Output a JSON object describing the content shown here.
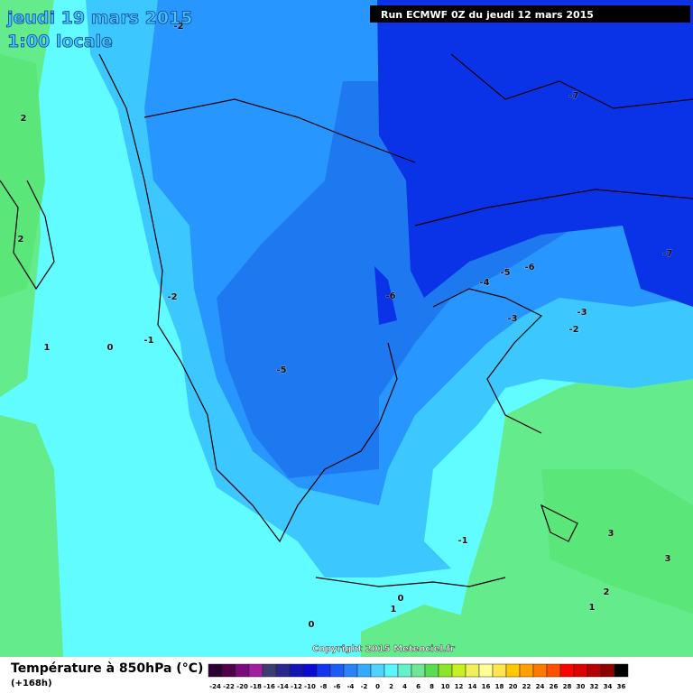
{
  "header": {
    "date": "jeudi 19 mars 2015",
    "time": "1:00 locale",
    "run": "Run ECMWF 0Z du jeudi 12 mars 2015"
  },
  "contour_labels": [
    -2,
    2,
    2,
    -7,
    -7,
    -6,
    -6,
    -5,
    -4,
    -3,
    -2,
    -3,
    -2,
    1,
    0,
    -1,
    -5,
    -1,
    3,
    3,
    2,
    1,
    1,
    0,
    0
  ],
  "copyright": "Copyright 2015 Meteociel.fr",
  "legend": {
    "title": "Température à 850hPa (°C)",
    "subtitle": "(+168h)",
    "scale": [
      -24,
      -22,
      -20,
      -18,
      -16,
      -14,
      -12,
      -10,
      -8,
      -6,
      -4,
      -2,
      0,
      2,
      4,
      6,
      8,
      10,
      12,
      14,
      16,
      18,
      20,
      22,
      24,
      26,
      28,
      30,
      32,
      34,
      36
    ],
    "colors": [
      "#2a0030",
      "#50004b",
      "#7d0a7d",
      "#a01ea0",
      "#3c3c6e",
      "#28288c",
      "#1414b4",
      "#0a0ad2",
      "#1432f0",
      "#1e5af5",
      "#2882fa",
      "#32aaff",
      "#50d2ff",
      "#5af5ff",
      "#64f0c8",
      "#6ee696",
      "#5adc50",
      "#8ce628",
      "#c8f01e",
      "#f0f05a",
      "#ffff96",
      "#ffe650",
      "#ffc800",
      "#ffa000",
      "#ff7800",
      "#ff5000",
      "#ff0000",
      "#dc0000",
      "#b40000",
      "#8c0000",
      "#000000"
    ]
  }
}
